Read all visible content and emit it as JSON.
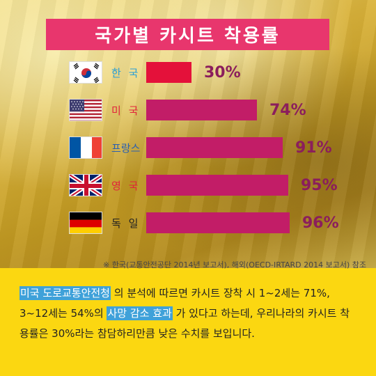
{
  "title": "국가별 카시트 착용률",
  "chart_data": {
    "type": "bar",
    "orientation": "horizontal",
    "title": "국가별 카시트 착용률",
    "categories": [
      "한국",
      "미국",
      "프랑스",
      "영국",
      "독일"
    ],
    "category_labels": [
      "한 국",
      "미 국",
      "프랑스",
      "영 국",
      "독 일"
    ],
    "values": [
      30,
      74,
      91,
      95,
      96
    ],
    "value_labels": [
      "30%",
      "74%",
      "91%",
      "95%",
      "96%"
    ],
    "xlim": [
      0,
      100
    ],
    "grid": false,
    "colors": {
      "highlight": "#e4113a",
      "bars": "#c21d67",
      "labels": "#8b1e5c",
      "country_kr": "#2a9fd6",
      "country_us": "#e2233b",
      "country_fr": "#2a5fb0",
      "country_uk": "#e2233b",
      "country_de": "#222222"
    },
    "flags": [
      "korea-flag",
      "usa-flag",
      "france-flag",
      "uk-flag",
      "germany-flag"
    ]
  },
  "note": "※ 한국(교통안전공단 2014년 보고서), 해외(OECD-IRTARD 2014 보고서) 참조",
  "description": {
    "hl1": "미국 도로교통안전청",
    "t1": " 의 분석에 따르면 카시트 장착 시 1~2세는 71%, 3~12세는 54%의 ",
    "hl2": "사망 감소 효과",
    "t2": " 가 있다고 하는데, 우리나라의 카시트 착용률은 30%라는 참담하리만큼 낮은 수치를 보입니다."
  }
}
